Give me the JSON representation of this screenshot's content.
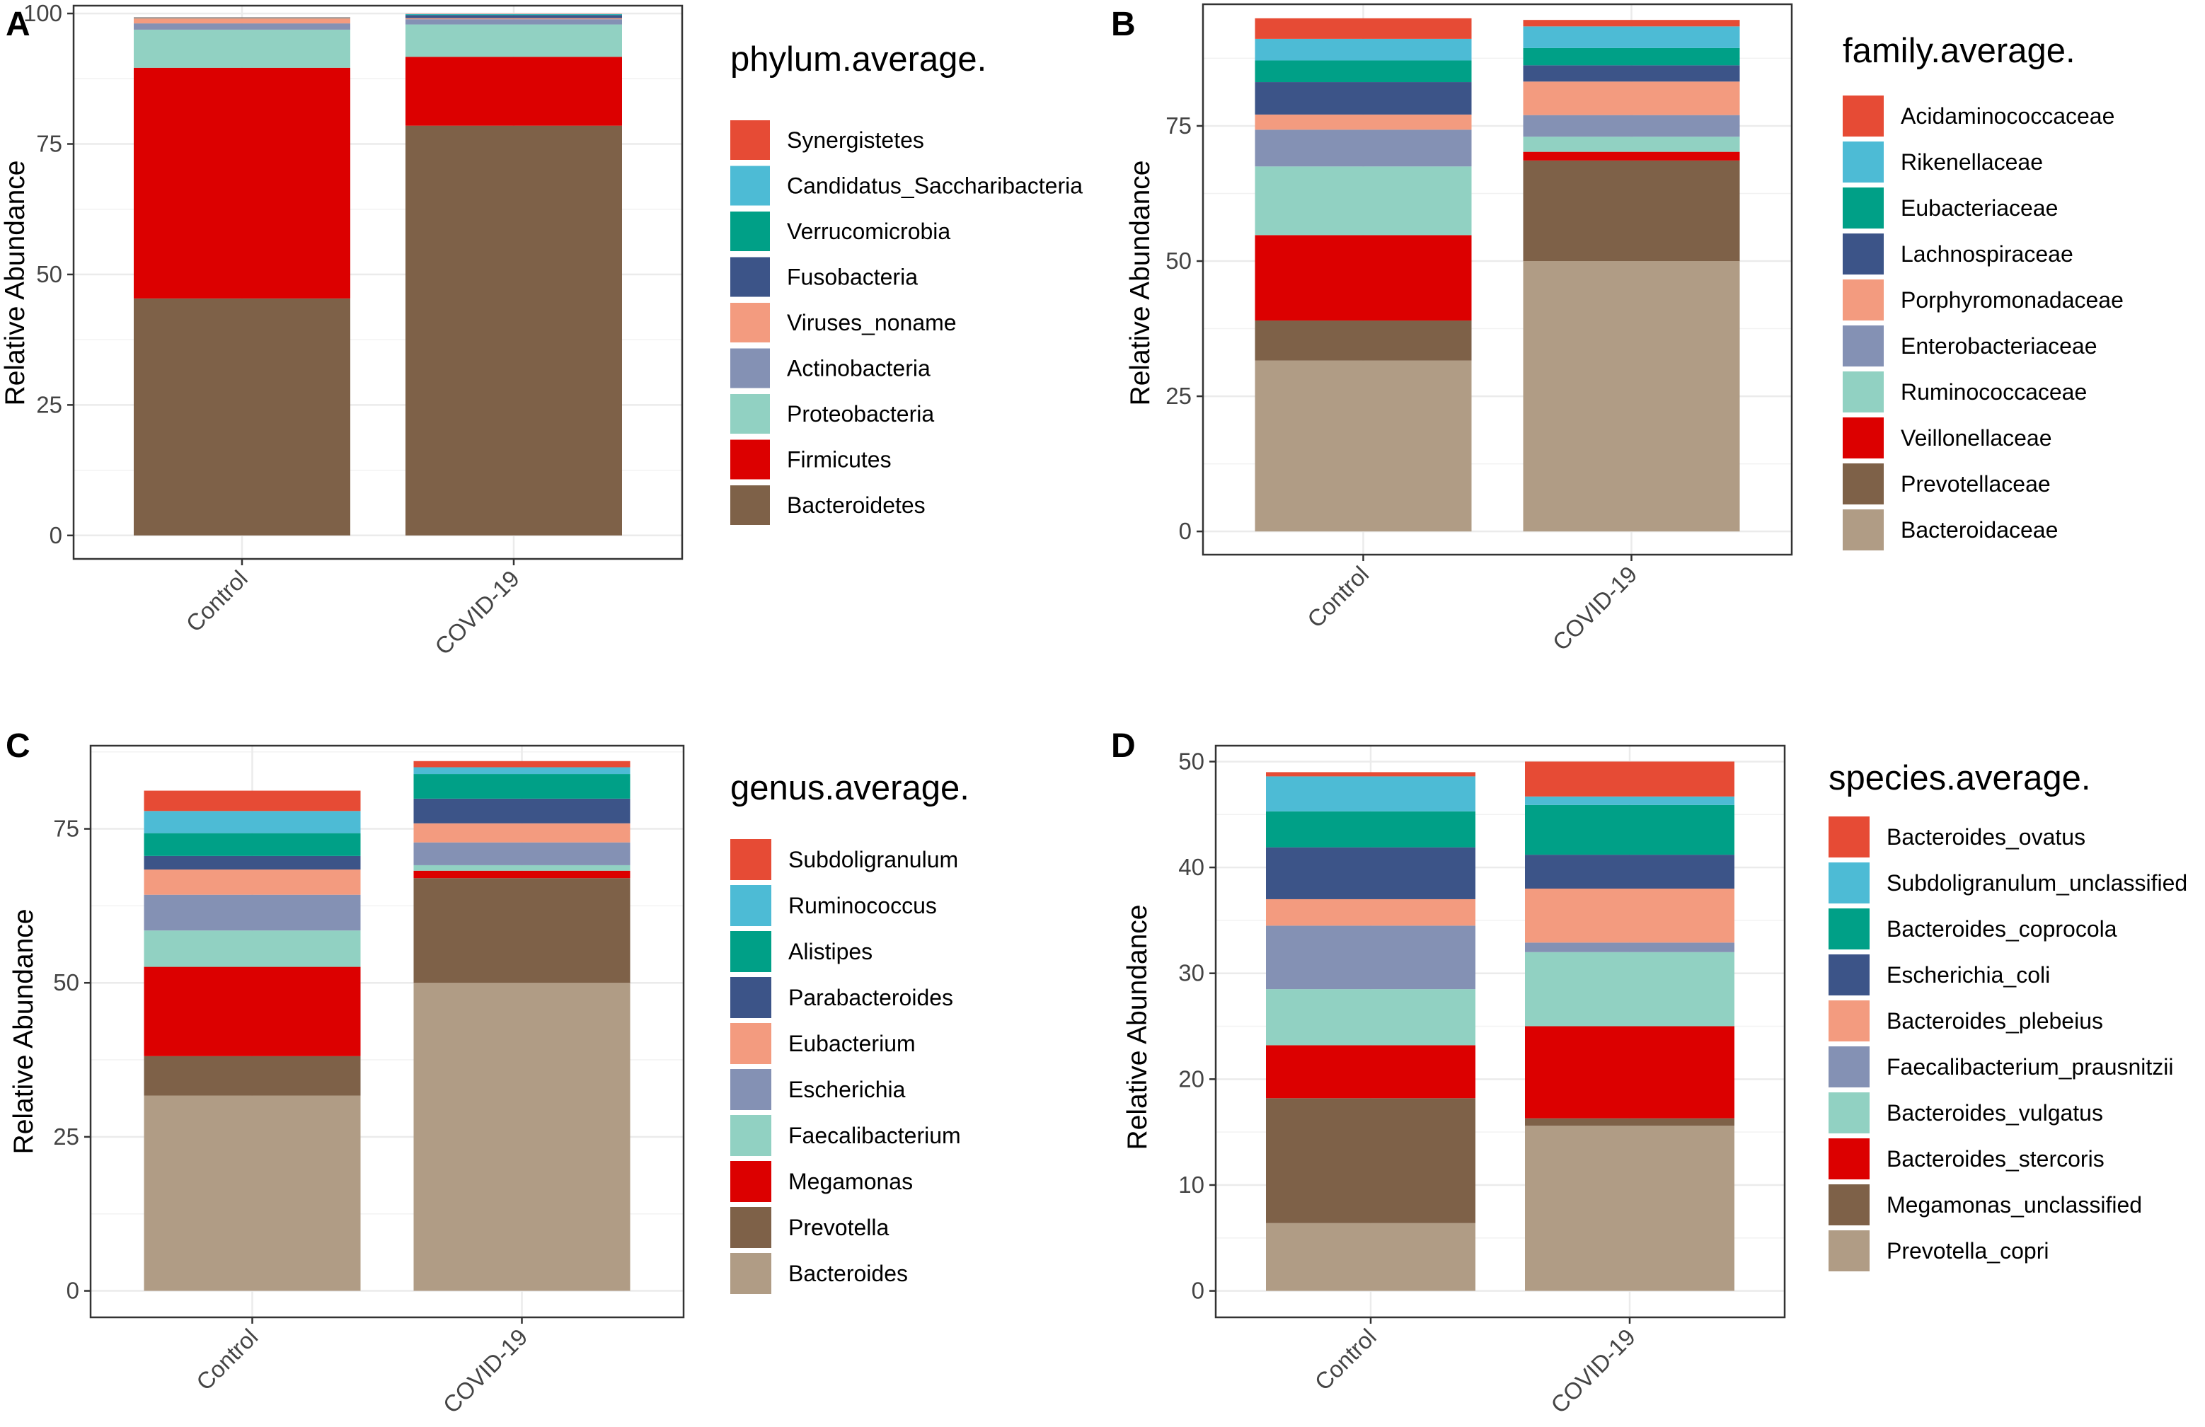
{
  "figure_labels": [
    "A",
    "B",
    "C",
    "D"
  ],
  "colors": {
    "red_orange": "#E64B35",
    "sky": "#4DBBD5",
    "teal": "#00A087",
    "navy": "#3C5488",
    "salmon": "#F39B7F",
    "slate": "#8491B4",
    "mint": "#91D1C2",
    "red": "#DC0000",
    "brown": "#7E6148",
    "tan": "#B09C85"
  },
  "chart_data": [
    {
      "type": "bar",
      "stacked": true,
      "panel": "A",
      "categories": [
        "Control",
        "COVID-19"
      ],
      "ylabel": "Relative Abundance",
      "xlabel": "",
      "ylim": [
        -4.5,
        101.5
      ],
      "yticks": [
        0,
        25,
        50,
        75,
        100
      ],
      "legend_title": "phylum.average.",
      "series": [
        {
          "name": "Synergistetes",
          "color": "#E64B35",
          "values": [
            0.05,
            0.05
          ]
        },
        {
          "name": "Candidatus_Saccharibacteria",
          "color": "#4DBBD5",
          "values": [
            0.05,
            0.1
          ]
        },
        {
          "name": "Verrucomicrobia",
          "color": "#00A087",
          "values": [
            0.05,
            0.1
          ]
        },
        {
          "name": "Fusobacteria",
          "color": "#3C5488",
          "values": [
            0.05,
            0.6
          ]
        },
        {
          "name": "Viruses_noname",
          "color": "#F39B7F",
          "values": [
            1.0,
            0.2
          ]
        },
        {
          "name": "Actinobacteria",
          "color": "#8491B4",
          "values": [
            1.2,
            1.0
          ]
        },
        {
          "name": "Proteobacteria",
          "color": "#91D1C2",
          "values": [
            7.3,
            6.2
          ]
        },
        {
          "name": "Firmicutes",
          "color": "#DC0000",
          "values": [
            44.2,
            13.2
          ]
        },
        {
          "name": "Bacteroidetes",
          "color": "#7E6148",
          "values": [
            45.4,
            78.5
          ]
        }
      ]
    },
    {
      "type": "bar",
      "stacked": true,
      "panel": "B",
      "categories": [
        "Control",
        "COVID-19"
      ],
      "ylabel": "Relative Abundance",
      "xlabel": "",
      "ylim": [
        -4.3,
        97.5
      ],
      "yticks": [
        0,
        25,
        50,
        75
      ],
      "legend_title": "family.average.",
      "series": [
        {
          "name": "Acidaminococcaceae",
          "color": "#E64B35",
          "values": [
            3.8,
            1.2
          ]
        },
        {
          "name": "Rikenellaceae",
          "color": "#4DBBD5",
          "values": [
            4.0,
            4.0
          ]
        },
        {
          "name": "Eubacteriaceae",
          "color": "#00A087",
          "values": [
            4.0,
            3.2
          ]
        },
        {
          "name": "Lachnospiraceae",
          "color": "#3C5488",
          "values": [
            6.0,
            3.0
          ]
        },
        {
          "name": "Porphyromonadaceae",
          "color": "#F39B7F",
          "values": [
            2.8,
            6.2
          ]
        },
        {
          "name": "Enterobacteriaceae",
          "color": "#8491B4",
          "values": [
            6.8,
            4.0
          ]
        },
        {
          "name": "Ruminococcaceae",
          "color": "#91D1C2",
          "values": [
            12.7,
            2.8
          ]
        },
        {
          "name": "Veillonellaceae",
          "color": "#DC0000",
          "values": [
            15.8,
            1.6
          ]
        },
        {
          "name": "Prevotellaceae",
          "color": "#7E6148",
          "values": [
            7.4,
            18.6
          ]
        },
        {
          "name": "Bacteroidaceae",
          "color": "#B09C85",
          "values": [
            31.6,
            50.0
          ]
        }
      ]
    },
    {
      "type": "bar",
      "stacked": true,
      "panel": "C",
      "categories": [
        "Control",
        "COVID-19"
      ],
      "ylabel": "Relative Abundance",
      "xlabel": "",
      "ylim": [
        -4.3,
        88.5
      ],
      "yticks": [
        0,
        25,
        50,
        75
      ],
      "legend_title": "genus.average.",
      "series": [
        {
          "name": "Subdoligranulum",
          "color": "#E64B35",
          "values": [
            3.3,
            1.0
          ]
        },
        {
          "name": "Ruminococcus",
          "color": "#4DBBD5",
          "values": [
            3.6,
            1.1
          ]
        },
        {
          "name": "Alistipes",
          "color": "#00A087",
          "values": [
            3.7,
            4.0
          ]
        },
        {
          "name": "Parabacteroides",
          "color": "#3C5488",
          "values": [
            2.2,
            4.0
          ]
        },
        {
          "name": "Eubacterium",
          "color": "#F39B7F",
          "values": [
            4.1,
            3.1
          ]
        },
        {
          "name": "Escherichia",
          "color": "#8491B4",
          "values": [
            5.8,
            3.7
          ]
        },
        {
          "name": "Faecalibacterium",
          "color": "#91D1C2",
          "values": [
            5.9,
            0.9
          ]
        },
        {
          "name": "Megamonas",
          "color": "#DC0000",
          "values": [
            14.5,
            1.2
          ]
        },
        {
          "name": "Prevotella",
          "color": "#7E6148",
          "values": [
            6.4,
            17.0
          ]
        },
        {
          "name": "Bacteroides",
          "color": "#B09C85",
          "values": [
            31.7,
            50.0
          ]
        }
      ]
    },
    {
      "type": "bar",
      "stacked": true,
      "panel": "D",
      "categories": [
        "Control",
        "COVID-19"
      ],
      "ylabel": "Relative Abundance",
      "xlabel": "",
      "ylim": [
        -2.5,
        51.5
      ],
      "yticks": [
        0,
        10,
        20,
        30,
        40,
        50
      ],
      "legend_title": "species.average.",
      "series": [
        {
          "name": "Bacteroides_ovatus",
          "color": "#E64B35",
          "values": [
            0.4,
            3.3
          ]
        },
        {
          "name": "Subdoligranulum_unclassified",
          "color": "#4DBBD5",
          "values": [
            3.3,
            0.8
          ]
        },
        {
          "name": "Bacteroides_coprocola",
          "color": "#00A087",
          "values": [
            3.4,
            4.7
          ]
        },
        {
          "name": "Escherichia_coli",
          "color": "#3C5488",
          "values": [
            4.9,
            3.2
          ]
        },
        {
          "name": "Bacteroides_plebeius",
          "color": "#F39B7F",
          "values": [
            2.5,
            5.1
          ]
        },
        {
          "name": "Faecalibacterium_prausnitzii",
          "color": "#8491B4",
          "values": [
            6.0,
            0.9
          ]
        },
        {
          "name": "Bacteroides_vulgatus",
          "color": "#91D1C2",
          "values": [
            5.3,
            7.0
          ]
        },
        {
          "name": "Bacteroides_stercoris",
          "color": "#DC0000",
          "values": [
            5.0,
            8.7
          ]
        },
        {
          "name": "Megamonas_unclassified",
          "color": "#7E6148",
          "values": [
            11.8,
            0.7
          ]
        },
        {
          "name": "Prevotella_copri",
          "color": "#B09C85",
          "values": [
            6.4,
            15.6
          ]
        }
      ]
    }
  ]
}
